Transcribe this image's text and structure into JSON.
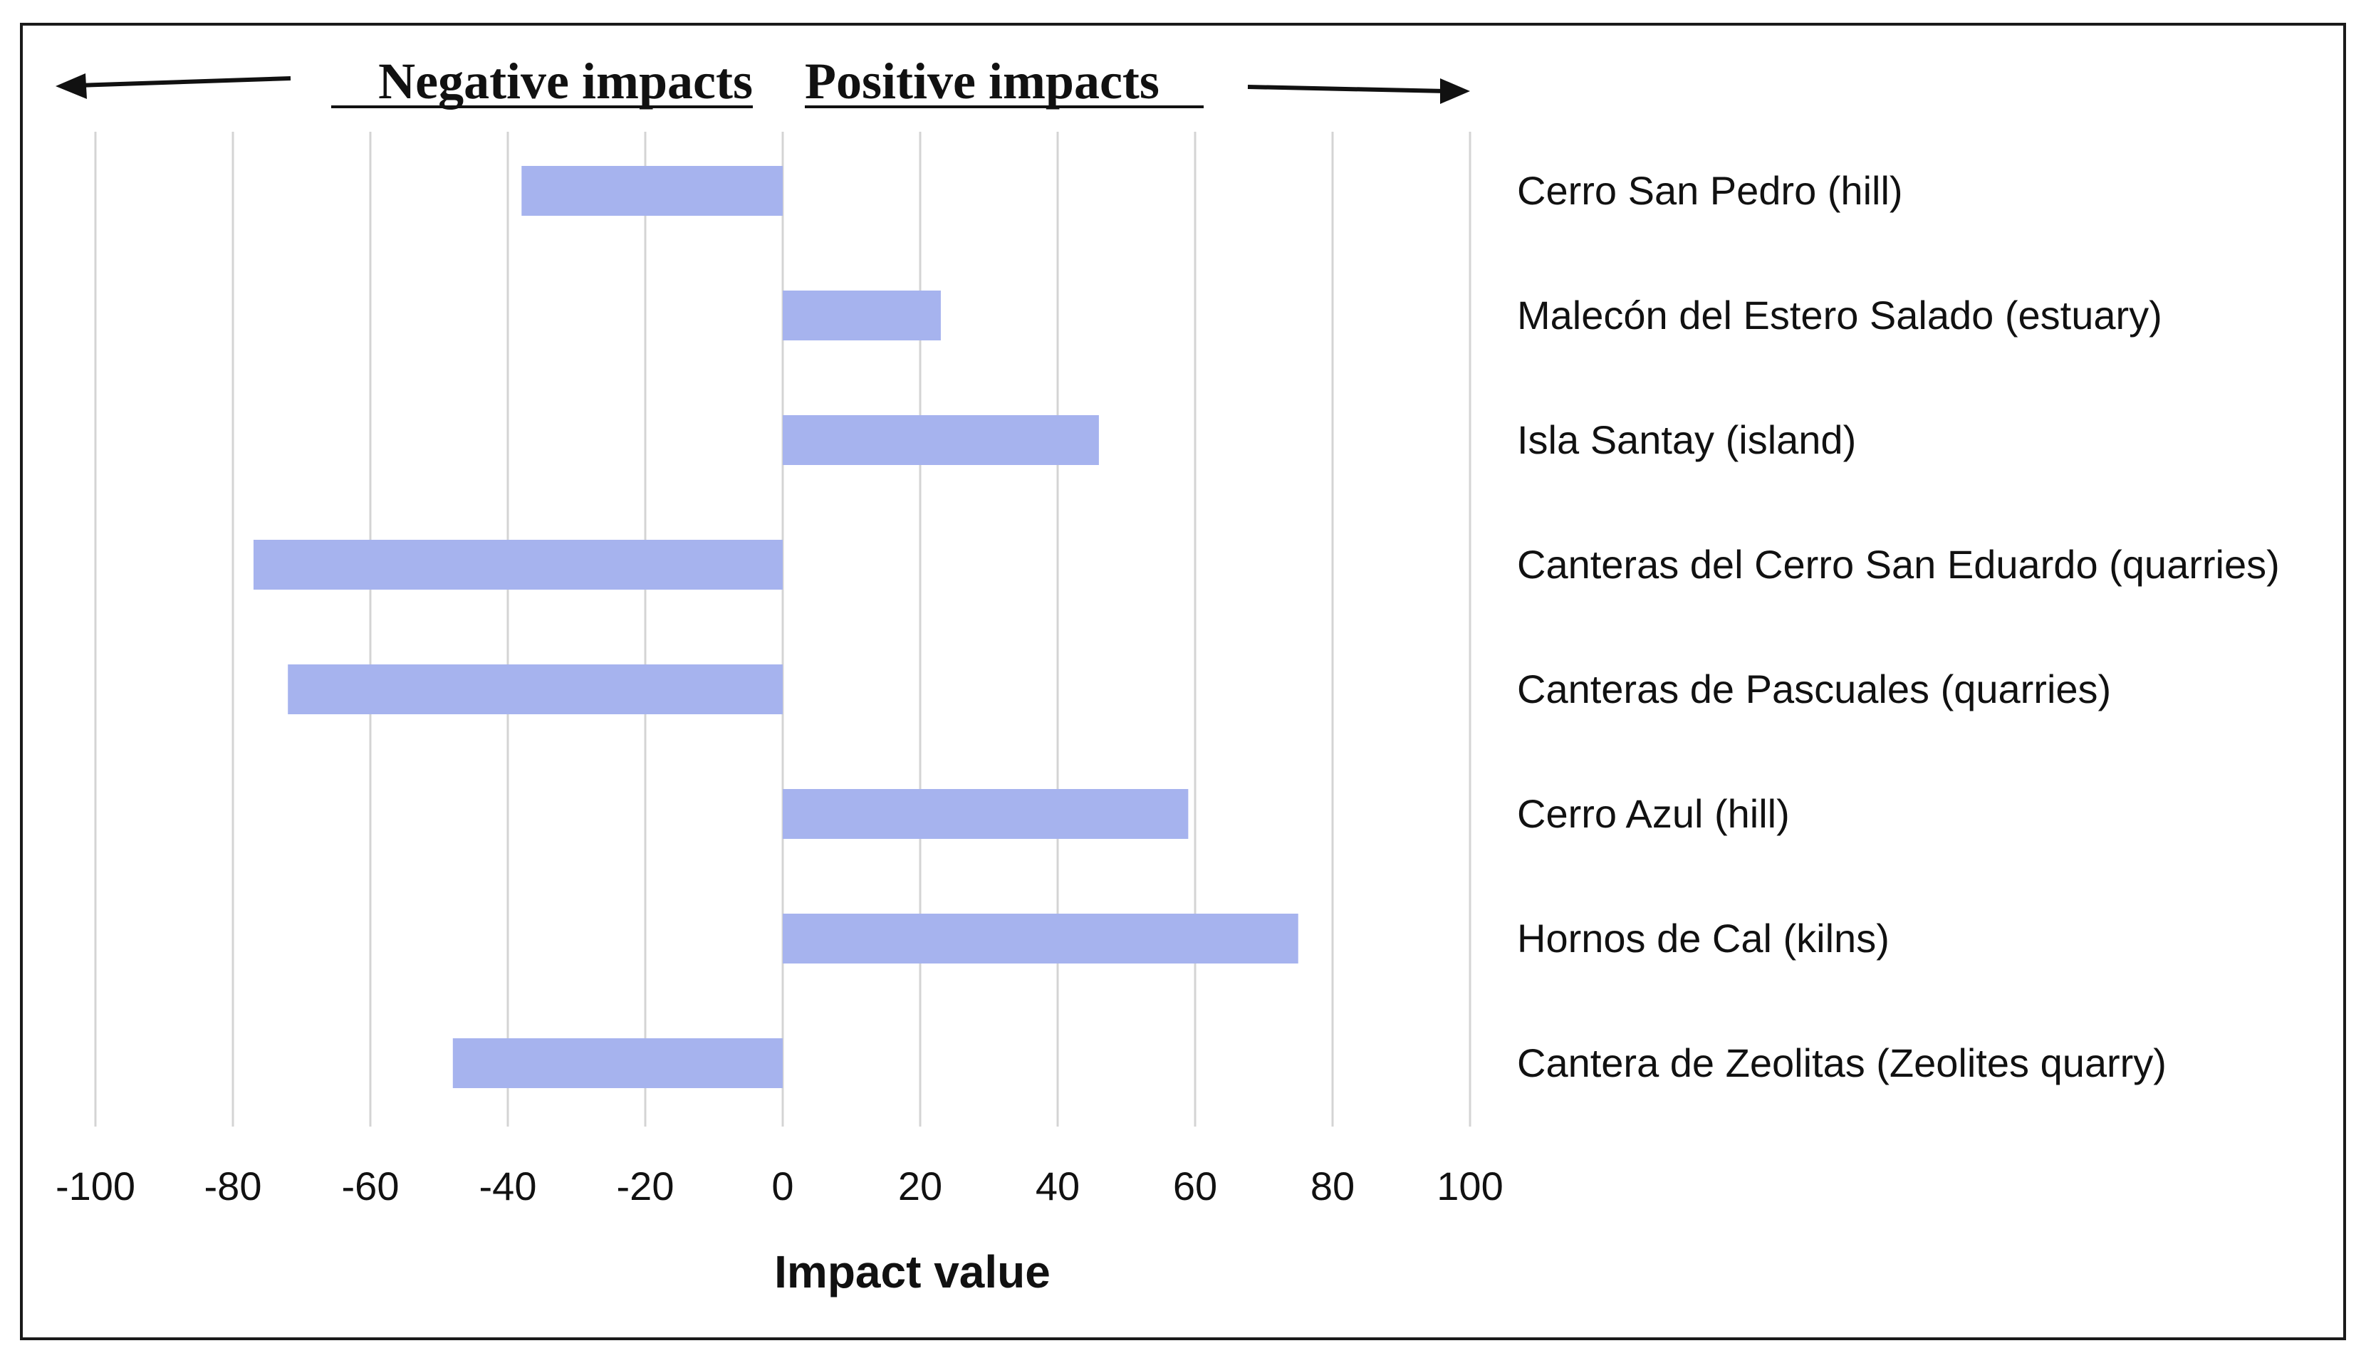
{
  "chart_data": {
    "type": "bar",
    "orientation": "horizontal",
    "categories": [
      "Cerro San Pedro (hill)",
      "Malecón del Estero Salado (estuary)",
      "Isla Santay (island)",
      "Canteras del Cerro San Eduardo (quarries)",
      "Canteras de Pascuales (quarries)",
      "Cerro Azul (hill)",
      "Hornos de Cal (kilns)",
      "Cantera de Zeolitas (Zeolites quarry)"
    ],
    "values": [
      -38,
      23,
      46,
      -77,
      -72,
      59,
      75,
      -48
    ],
    "xlabel": "Impact value",
    "ylabel": "",
    "xlim": [
      -100,
      100
    ],
    "ticks": [
      -100,
      -80,
      -60,
      -40,
      -20,
      0,
      20,
      40,
      60,
      80,
      100
    ],
    "tick_labels": [
      "-100",
      "-80",
      "-60",
      "-40",
      "-20",
      "0",
      "20",
      "40",
      "60",
      "80",
      "100"
    ],
    "grid": true,
    "legend": "none",
    "annotations": {
      "negative_label": "Negative impacts",
      "positive_label": "Positive impacts"
    },
    "bar_color": "#a6b3ee",
    "grid_color": "#d4d4d4",
    "text_color": "#111111"
  }
}
